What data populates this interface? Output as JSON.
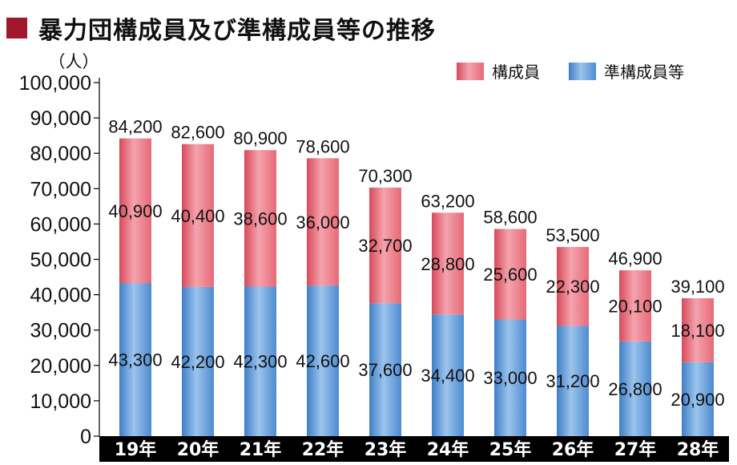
{
  "title": "暴力団構成員及び準構成員等の推移",
  "colors": {
    "title_marker": "#a0162a",
    "member": "#e8707c",
    "associate": "#5a96d6",
    "axis_band": "#000000"
  },
  "chart_data": {
    "type": "bar",
    "stacked": true,
    "title": "暴力団構成員及び準構成員等の推移",
    "unit_label": "（人）",
    "ylim": [
      0,
      100000
    ],
    "y_ticks": [
      "0",
      "10,000",
      "20,000",
      "30,000",
      "40,000",
      "50,000",
      "60,000",
      "70,000",
      "80,000",
      "90,000",
      "100,000"
    ],
    "categories": [
      "19年",
      "20年",
      "21年",
      "22年",
      "23年",
      "24年",
      "25年",
      "26年",
      "27年",
      "28年"
    ],
    "series": [
      {
        "name": "準構成員等",
        "values": [
          43300,
          42200,
          42300,
          42600,
          37600,
          34400,
          33000,
          31200,
          26800,
          20900
        ],
        "labels": [
          "43,300",
          "42,200",
          "42,300",
          "42,600",
          "37,600",
          "34,400",
          "33,000",
          "31,200",
          "26,800",
          "20,900"
        ]
      },
      {
        "name": "構成員",
        "values": [
          40900,
          40400,
          38600,
          36000,
          32700,
          28800,
          25600,
          22300,
          20100,
          18100
        ],
        "labels": [
          "40,900",
          "40,400",
          "38,600",
          "36,000",
          "32,700",
          "28,800",
          "25,600",
          "22,300",
          "20,100",
          "18,100"
        ]
      }
    ],
    "totals": [
      84200,
      82600,
      80900,
      78600,
      70300,
      63200,
      58600,
      53500,
      46900,
      39100
    ],
    "total_labels": [
      "84,200",
      "82,600",
      "80,900",
      "78,600",
      "70,300",
      "63,200",
      "58,600",
      "53,500",
      "46,900",
      "39,100"
    ],
    "legend": [
      "構成員",
      "準構成員等"
    ],
    "legend_position": "top-right"
  }
}
